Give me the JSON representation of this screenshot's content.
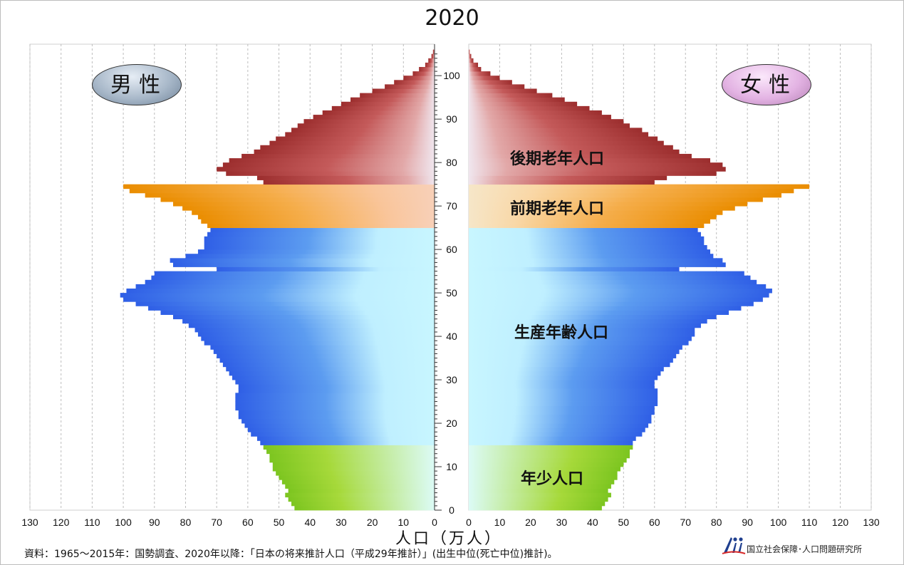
{
  "chart_data": {
    "type": "bar",
    "subtype": "population-pyramid",
    "title": "2020",
    "xlabel": "人口（万人）",
    "x_ticks": [
      130,
      120,
      110,
      100,
      90,
      80,
      70,
      60,
      50,
      40,
      30,
      20,
      10,
      0
    ],
    "y_ticks": [
      0,
      10,
      20,
      30,
      40,
      50,
      60,
      70,
      80,
      90,
      100
    ],
    "xlim": [
      0,
      130
    ],
    "ylim": [
      0,
      105
    ],
    "grid": "vertical dashed",
    "series": [
      {
        "name": "男性",
        "values": [
          45,
          46,
          47,
          48,
          47,
          48,
          49,
          50,
          51,
          52,
          52,
          53,
          53,
          54,
          55,
          56,
          57,
          59,
          60,
          61,
          62,
          63,
          63,
          64,
          64,
          64,
          64,
          63,
          63,
          64,
          65,
          66,
          67,
          68,
          69,
          70,
          71,
          72,
          74,
          75,
          76,
          77,
          79,
          81,
          84,
          88,
          92,
          96,
          100,
          101,
          99,
          96,
          93,
          91,
          90,
          70,
          84,
          85,
          80,
          76,
          74,
          74,
          74,
          73,
          72,
          73,
          75,
          76,
          78,
          81,
          84,
          88,
          93,
          98,
          100,
          55,
          57,
          67,
          70,
          68,
          66,
          62,
          58,
          56,
          53,
          51,
          48,
          46,
          44,
          42,
          39,
          36,
          33,
          30,
          27,
          24,
          20,
          16,
          13,
          10,
          7,
          5,
          3,
          2,
          1,
          0.5
        ]
      },
      {
        "name": "女性",
        "values": [
          43,
          44,
          45,
          46,
          45,
          46,
          47,
          48,
          48,
          49,
          50,
          51,
          52,
          52,
          53,
          53,
          54,
          56,
          57,
          58,
          59,
          59,
          60,
          60,
          61,
          61,
          61,
          61,
          60,
          60,
          61,
          62,
          63,
          65,
          66,
          67,
          68,
          69,
          71,
          72,
          73,
          73,
          75,
          77,
          80,
          84,
          88,
          92,
          95,
          97,
          98,
          96,
          93,
          91,
          89,
          68,
          83,
          82,
          79,
          78,
          77,
          76,
          76,
          75,
          74,
          76,
          78,
          80,
          82,
          86,
          90,
          95,
          101,
          105,
          110,
          60,
          64,
          80,
          83,
          82,
          78,
          72,
          68,
          66,
          63,
          61,
          58,
          56,
          52,
          50,
          46,
          43,
          39,
          35,
          31,
          27,
          22,
          18,
          14,
          10,
          7,
          4,
          3,
          1.5,
          0.8,
          0.3
        ]
      }
    ],
    "groups": [
      {
        "label": "年少人口",
        "age_from": 0,
        "age_to": 14,
        "color": "#8fcd2c"
      },
      {
        "label": "生産年齢人口",
        "age_from": 15,
        "age_to": 64,
        "color": "#3a6de8"
      },
      {
        "label": "前期老年人口",
        "age_from": 65,
        "age_to": 74,
        "color": "#f0930e"
      },
      {
        "label": "後期老年人口",
        "age_from": 75,
        "age_to": 105,
        "color": "#a83a3a"
      }
    ]
  },
  "labels": {
    "male": "男性",
    "female": "女性",
    "group_old2": "後期老年人口",
    "group_old1": "前期老年人口",
    "group_work": "生産年齢人口",
    "group_young": "年少人口"
  },
  "source": "資料：1965～2015年：国勢調査、2020年以降：「日本の将来推計人口（平成29年推計）」(出生中位(死亡中位)推計)。",
  "organization": "国立社会保障･人口問題研究所"
}
